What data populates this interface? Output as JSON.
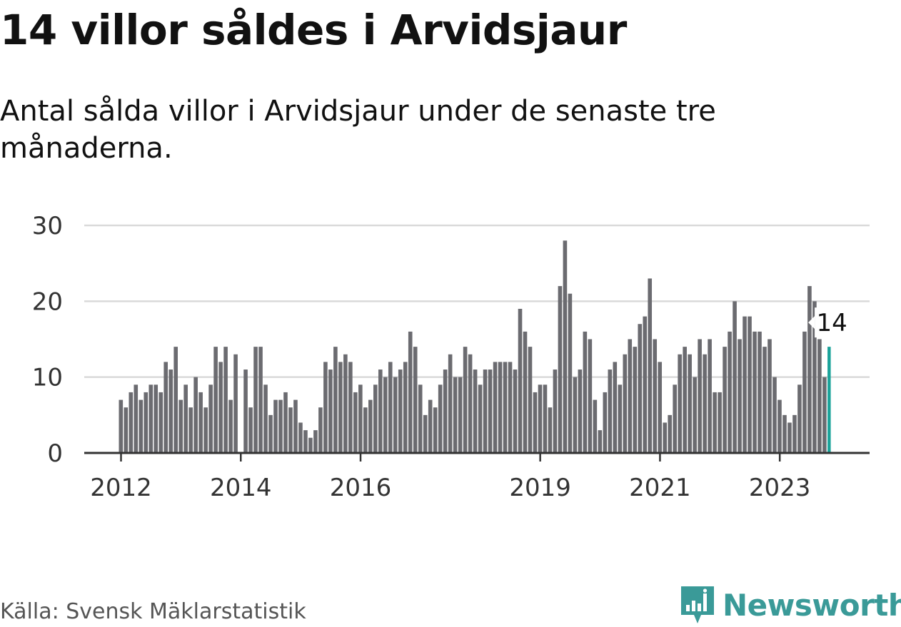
{
  "title": "14 villor såldes i Arvidsjaur",
  "subtitle": "Antal sålda villor i Arvidsjaur under de senaste tre månaderna.",
  "source": "Källa: Svensk Mäklarstatistik",
  "brand": {
    "name": "Newsworthy",
    "color": "#3a9a98",
    "icon": "newsworthy-logo-icon"
  },
  "colors": {
    "bar": "#6b6b70",
    "highlight": "#1aa39a",
    "grid": "#d9d9d9",
    "axis": "#333333",
    "tick_text": "#333333"
  },
  "chart_data": {
    "type": "bar",
    "title": "14 villor såldes i Arvidsjaur",
    "xlabel": "",
    "ylabel": "",
    "ylim": [
      0,
      30
    ],
    "yticks": [
      0,
      10,
      20,
      30
    ],
    "grid": true,
    "xtick_labels": [
      {
        "label": "2012",
        "index": 0
      },
      {
        "label": "2014",
        "index": 24
      },
      {
        "label": "2016",
        "index": 48
      },
      {
        "label": "2019",
        "index": 84
      },
      {
        "label": "2021",
        "index": 108
      },
      {
        "label": "2023",
        "index": 132
      }
    ],
    "highlight": {
      "index": 142,
      "label": "14"
    },
    "values": [
      7,
      6,
      8,
      9,
      7,
      8,
      9,
      9,
      8,
      12,
      11,
      14,
      7,
      9,
      6,
      10,
      8,
      6,
      9,
      14,
      12,
      14,
      7,
      13,
      0,
      11,
      6,
      14,
      14,
      9,
      5,
      7,
      7,
      8,
      6,
      7,
      4,
      3,
      2,
      3,
      6,
      12,
      11,
      14,
      12,
      13,
      12,
      8,
      9,
      6,
      7,
      9,
      11,
      10,
      12,
      10,
      11,
      12,
      16,
      14,
      9,
      5,
      7,
      6,
      9,
      11,
      13,
      10,
      10,
      14,
      13,
      11,
      9,
      11,
      11,
      12,
      12,
      12,
      12,
      11,
      19,
      16,
      14,
      8,
      9,
      9,
      6,
      11,
      22,
      28,
      21,
      10,
      11,
      16,
      15,
      7,
      3,
      8,
      11,
      12,
      9,
      13,
      15,
      14,
      17,
      18,
      23,
      15,
      12,
      4,
      5,
      9,
      13,
      14,
      13,
      10,
      15,
      13,
      15,
      8,
      8,
      14,
      16,
      20,
      15,
      18,
      18,
      16,
      16,
      14,
      15,
      10,
      7,
      5,
      4,
      5,
      9,
      16,
      22,
      20,
      15,
      10,
      14
    ]
  }
}
